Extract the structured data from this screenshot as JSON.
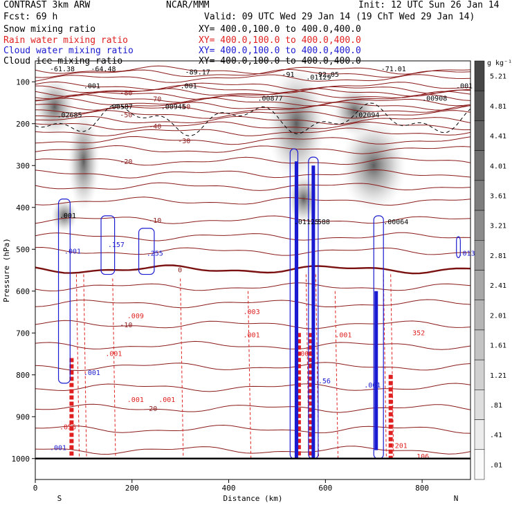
{
  "header": {
    "title_left": "CONTRAST  3km ARW",
    "title_center": "NCAR/MMM",
    "init": "Init: 12 UTC Sun 26 Jan 14",
    "fcst": "Fcst:   69 h",
    "valid": "Valid: 09 UTC Wed 29 Jan 14 (19 ChT Wed 29 Jan 14)",
    "legend": [
      {
        "label": "Snow mixing ratio",
        "xy": "XY= 400.0,100.0 to 400.0,400.0",
        "color": "#000000"
      },
      {
        "label": "Rain water mixing ratio",
        "xy": "XY= 400.0,100.0 to 400.0,400.0",
        "color": "#e02020"
      },
      {
        "label": "Cloud water mixing ratio",
        "xy": "XY= 400.0,100.0 to 400.0,400.0",
        "color": "#1a1ad0"
      },
      {
        "label": "Cloud ice mixing ratio",
        "xy": "XY= 400.0,100.0 to 400.0,400.0",
        "color": "#000000"
      }
    ]
  },
  "chart_data": {
    "type": "contour cross-section",
    "xlabel": "Distance (km)",
    "ylabel": "Pressure (hPa)",
    "xlim": [
      0,
      900
    ],
    "ylim": [
      1050,
      50
    ],
    "x_ticks": [
      0,
      200,
      400,
      600,
      800
    ],
    "y_ticks": [
      100,
      200,
      300,
      400,
      500,
      600,
      700,
      800,
      900,
      1000
    ],
    "x_end_labels": [
      "S",
      "N"
    ],
    "colorbar": {
      "unit": "g kg⁻¹",
      "levels": [
        "5.21",
        "4.81",
        "4.41",
        "4.01",
        "3.61",
        "3.21",
        "2.81",
        "2.41",
        "2.01",
        "1.61",
        "1.21",
        ".81",
        ".41",
        ".01"
      ]
    },
    "isotherms": [
      {
        "label": "-80",
        "p": 125
      },
      {
        "label": "-70",
        "p": 140
      },
      {
        "label": "-60",
        "p": 158
      },
      {
        "label": "-50",
        "p": 178
      },
      {
        "label": "-40",
        "p": 205
      },
      {
        "label": "-30",
        "p": 240
      },
      {
        "label": "-20",
        "p": 290
      },
      {
        "label": "-10",
        "p": 430
      },
      {
        "label": "0",
        "p": 548
      },
      {
        "label": "-10",
        "p": 680
      },
      {
        "label": "20",
        "p": 880
      }
    ],
    "minima_labels": [
      {
        "x": 30,
        "p": 75,
        "label": "-61.38"
      },
      {
        "x": 115,
        "p": 75,
        "label": "-64.48"
      },
      {
        "x": 310,
        "p": 82,
        "label": "-89.17"
      },
      {
        "x": 510,
        "p": 88,
        "label": "-91"
      },
      {
        "x": 585,
        "p": 88,
        "label": "92.05"
      },
      {
        "x": 715,
        "p": 75,
        "label": "-71.01"
      }
    ],
    "snow_maxima": [
      {
        "x": 45,
        "p": 185,
        "label": ".02685"
      },
      {
        "x": 150,
        "p": 165,
        "label": ".00587"
      },
      {
        "x": 260,
        "p": 165,
        "label": ".00945"
      },
      {
        "x": 460,
        "p": 145,
        "label": ".00877"
      },
      {
        "x": 560,
        "p": 95,
        "label": ".01129"
      },
      {
        "x": 660,
        "p": 185,
        "label": ".02094"
      },
      {
        "x": 800,
        "p": 145,
        "label": ".00908"
      },
      {
        "x": 100,
        "p": 115,
        "label": ".001"
      },
      {
        "x": 300,
        "p": 115,
        "label": ".001"
      },
      {
        "x": 870,
        "p": 115,
        "label": ".001"
      }
    ],
    "ice_maxima": [
      {
        "x": 535,
        "p": 440,
        "label": ".01125"
      },
      {
        "x": 575,
        "p": 440,
        "label": ".588"
      },
      {
        "x": 720,
        "p": 440,
        "label": ".00064"
      },
      {
        "x": 50,
        "p": 425,
        "label": ".001"
      }
    ],
    "cloud_water_maxima": [
      {
        "x": 150,
        "p": 495,
        "label": ".157"
      },
      {
        "x": 230,
        "p": 515,
        "label": ".255"
      },
      {
        "x": 875,
        "p": 515,
        "label": ".013"
      },
      {
        "x": 60,
        "p": 510,
        "label": ".001"
      },
      {
        "x": 100,
        "p": 800,
        "label": ".001"
      },
      {
        "x": 680,
        "p": 830,
        "label": ".001"
      },
      {
        "x": 30,
        "p": 980,
        "label": ".001"
      },
      {
        "x": 585,
        "p": 820,
        "label": ".56"
      }
    ],
    "rain_maxima": [
      {
        "x": 190,
        "p": 665,
        "label": ".009"
      },
      {
        "x": 430,
        "p": 655,
        "label": ".003"
      },
      {
        "x": 780,
        "p": 705,
        "label": "352"
      },
      {
        "x": 50,
        "p": 930,
        "label": ".056"
      },
      {
        "x": 735,
        "p": 975,
        "label": ".201"
      },
      {
        "x": 780,
        "p": 1000,
        "label": ".106"
      },
      {
        "x": 145,
        "p": 755,
        "label": ".001"
      },
      {
        "x": 430,
        "p": 710,
        "label": ".001"
      },
      {
        "x": 620,
        "p": 710,
        "label": ".001"
      },
      {
        "x": 190,
        "p": 865,
        "label": ".001"
      },
      {
        "x": 255,
        "p": 865,
        "label": ".001"
      },
      {
        "x": 540,
        "p": 755,
        "label": ".001"
      }
    ]
  }
}
